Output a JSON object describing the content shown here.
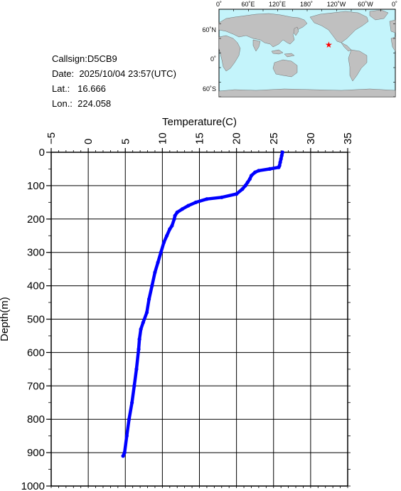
{
  "station": {
    "callsign_text": "Callsign:D5CB9",
    "date_label": "Date:",
    "date_value": "2025/10/04 23:57(UTC)",
    "lat_label": "Lat.:",
    "lat_value": "16.666",
    "lon_label": "Lon.:",
    "lon_value": "224.058"
  },
  "map": {
    "top_labels": [
      "0˚",
      "60˚E",
      "120˚E",
      "180˚",
      "120˚W",
      "60˚W",
      "0˚"
    ],
    "side_labels": [
      "60˚N",
      "0˚",
      "60˚S"
    ],
    "ocean_color": "#c4f4fb",
    "land_color": "#c0c0c0",
    "marker_color": "#ff0000",
    "marker_icon": "star-icon",
    "marker_lon": 224.058,
    "marker_lat": 16.666
  },
  "colors": {
    "profile_line": "#0000ff",
    "grid": "#000000"
  },
  "chart_data": {
    "type": "line",
    "xlabel": "Temperature(C)",
    "ylabel": "Depth(m)",
    "xlim": [
      -5,
      35
    ],
    "ylim": [
      1000,
      0
    ],
    "x_axis_position": "top",
    "grid": true,
    "x_ticks": [
      -5,
      0,
      5,
      10,
      15,
      20,
      25,
      30,
      35
    ],
    "y_ticks": [
      0,
      100,
      200,
      300,
      400,
      500,
      600,
      700,
      800,
      900,
      1000
    ],
    "series": [
      {
        "temperature": [
          26.2,
          26.1,
          26.0,
          25.9,
          25.8,
          25.7,
          24.5,
          23.0,
          22.5,
          22.0,
          21.8,
          21.5,
          21.2,
          20.8,
          20.0,
          18.0,
          16.0,
          14.5,
          13.5,
          12.7,
          12.0,
          11.7,
          11.6,
          11.3,
          11.0,
          10.6,
          10.2,
          9.8,
          9.4,
          9.0,
          8.6,
          8.2,
          7.9,
          7.4,
          7.1,
          6.9,
          6.8,
          6.5,
          6.2,
          5.9,
          5.5,
          5.2,
          4.9,
          4.7
        ],
        "depth": [
          0,
          10,
          20,
          30,
          40,
          45,
          50,
          55,
          60,
          70,
          80,
          90,
          100,
          110,
          125,
          135,
          140,
          150,
          160,
          170,
          180,
          190,
          200,
          220,
          230,
          250,
          270,
          300,
          330,
          360,
          400,
          440,
          480,
          510,
          530,
          560,
          590,
          650,
          700,
          750,
          800,
          850,
          900,
          910
        ]
      }
    ]
  }
}
